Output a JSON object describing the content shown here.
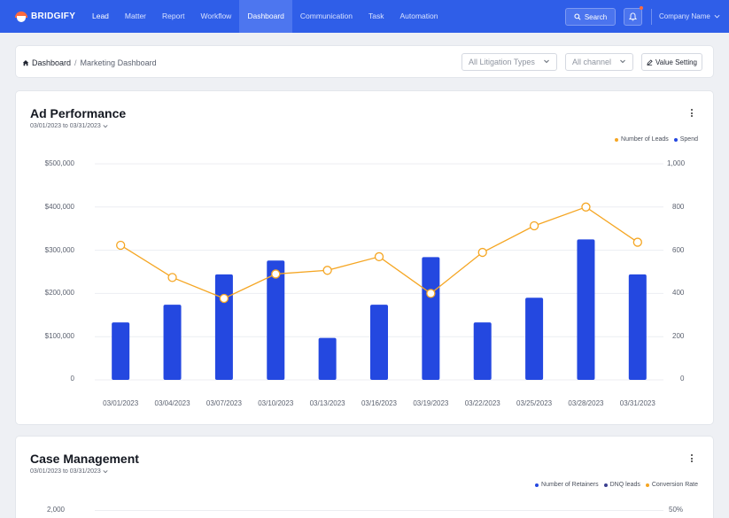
{
  "app": {
    "brand": "BRIDGIFY",
    "nav": [
      "Lead",
      "Matter",
      "Report",
      "Workflow",
      "Dashboard",
      "Communication",
      "Task",
      "Automation"
    ],
    "active_nav": "Dashboard",
    "search_label": "Search",
    "company_label": "Company Name",
    "accent": "#2f5ee8"
  },
  "breadcrumb": {
    "home": "Dashboard",
    "separator": "/",
    "current": "Marketing Dashboard"
  },
  "filters": {
    "litigation": "All Litigation Types",
    "channel": "All channel",
    "value_setting": "Value Setting"
  },
  "ad_performance": {
    "title": "Ad Performance",
    "range": "03/01/2023 to 03/31/2023",
    "left_ticks": [
      "$500,000",
      "$400,000",
      "$300,000",
      "$200,000",
      "$100,000",
      "0"
    ],
    "right_ticks": [
      "1,000",
      "800",
      "600",
      "400",
      "200",
      "0"
    ],
    "legend": [
      {
        "label": "Number of Leads",
        "color": "#f5a623"
      },
      {
        "label": "Spend",
        "color": "#2448e0"
      }
    ]
  },
  "case_management": {
    "title": "Case Management",
    "range": "03/01/2023 to 03/31/2023",
    "left_tick_top": "2,000",
    "right_tick_top": "50%",
    "legend": [
      {
        "label": "Number of Retainers",
        "color": "#2448e0"
      },
      {
        "label": "DNQ leads",
        "color": "#3a3f8f"
      },
      {
        "label": "Conversion Rate",
        "color": "#f5a623"
      }
    ]
  },
  "chart_data": [
    {
      "type": "bar",
      "title": "Ad Performance",
      "categories": [
        "03/01/2023",
        "03/04/2023",
        "03/07/2023",
        "03/10/2023",
        "03/13/2023",
        "03/16/2023",
        "03/19/2023",
        "03/22/2023",
        "03/25/2023",
        "03/28/2023",
        "03/31/2023"
      ],
      "series": [
        {
          "name": "Spend",
          "type": "bar",
          "axis": "left",
          "color": "#2448e0",
          "values": [
            133000,
            174000,
            244000,
            276000,
            97000,
            174000,
            284000,
            133000,
            190000,
            325000,
            244000
          ]
        },
        {
          "name": "Number of Leads",
          "type": "line",
          "axis": "right",
          "color": "#f5a623",
          "values": [
            623,
            474,
            377,
            490,
            507,
            570,
            400,
            590,
            713,
            800,
            637
          ]
        }
      ],
      "ylim_left": [
        0,
        500000
      ],
      "ylim_right": [
        0,
        1000
      ],
      "grid": true,
      "legend_position": "top-right"
    }
  ]
}
